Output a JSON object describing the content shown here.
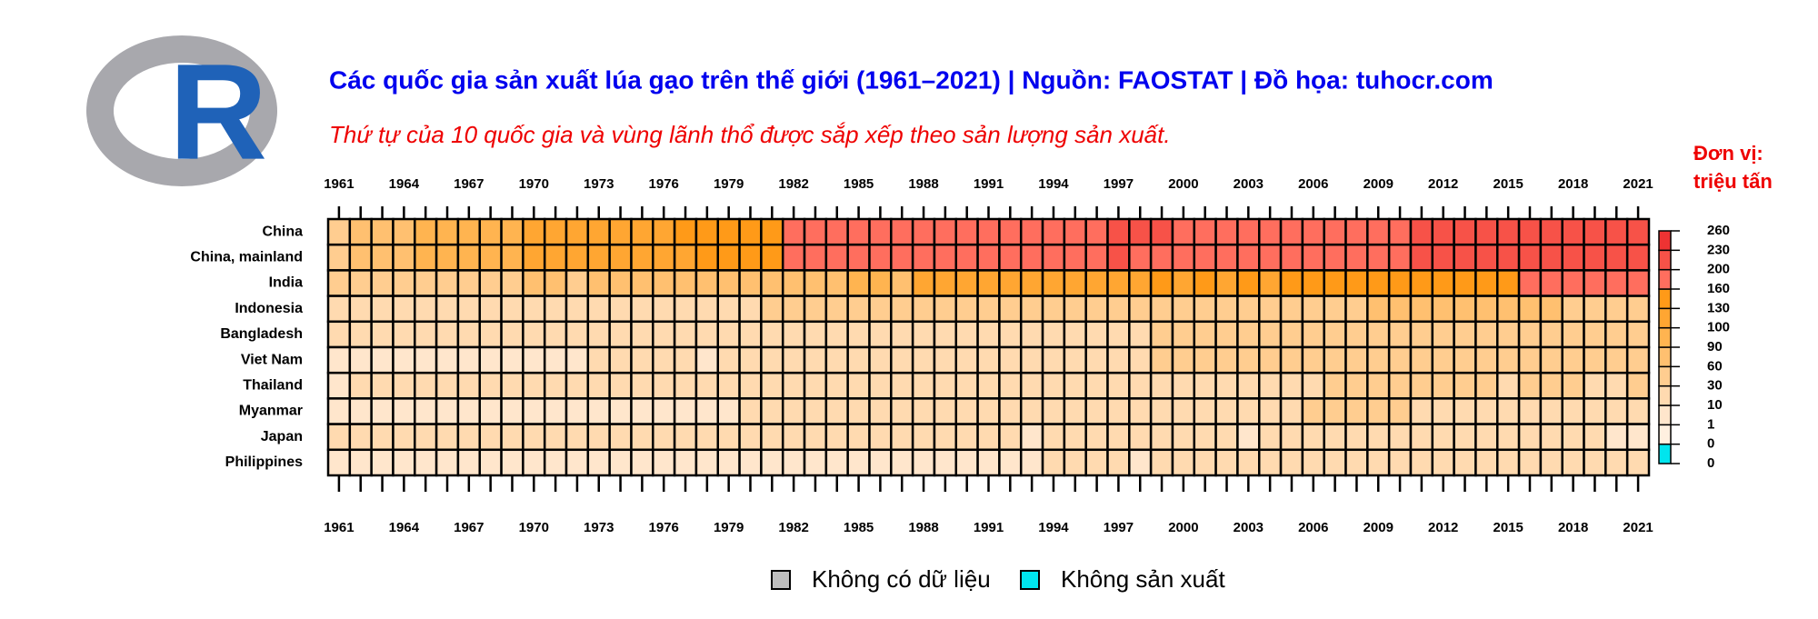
{
  "chart_data": {
    "type": "heatmap",
    "title": "Các quốc gia sản xuất lúa gạo trên thế giới (1961–2021) | Nguồn: FAOSTAT | Đồ họa: tuhocr.com",
    "subtitle": "Thứ tự của 10 quốc gia và vùng lãnh thổ được sắp xếp theo sản lượng sản xuất.",
    "unit_label": [
      "Đơn vị:",
      "triệu tấn"
    ],
    "x": [
      1961,
      1962,
      1963,
      1964,
      1965,
      1966,
      1967,
      1968,
      1969,
      1970,
      1971,
      1972,
      1973,
      1974,
      1975,
      1976,
      1977,
      1978,
      1979,
      1980,
      1981,
      1982,
      1983,
      1984,
      1985,
      1986,
      1987,
      1988,
      1989,
      1990,
      1991,
      1992,
      1993,
      1994,
      1995,
      1996,
      1997,
      1998,
      1999,
      2000,
      2001,
      2002,
      2003,
      2004,
      2005,
      2006,
      2007,
      2008,
      2009,
      2010,
      2011,
      2012,
      2013,
      2014,
      2015,
      2016,
      2017,
      2018,
      2019,
      2020,
      2021
    ],
    "xticks": [
      1961,
      1964,
      1967,
      1970,
      1973,
      1976,
      1979,
      1982,
      1985,
      1988,
      1991,
      1994,
      1997,
      2000,
      2003,
      2006,
      2009,
      2012,
      2015,
      2018,
      2021
    ],
    "series": [
      {
        "name": "China",
        "values": [
          56,
          65,
          76,
          89,
          93,
          98,
          97,
          97,
          97,
          113,
          118,
          115,
          124,
          127,
          128,
          128,
          131,
          139,
          146,
          145,
          146,
          164,
          171,
          181,
          172,
          175,
          177,
          172,
          184,
          192,
          186,
          188,
          180,
          178,
          187,
          197,
          203,
          202,
          201,
          190,
          180,
          177,
          163,
          181,
          183,
          184,
          188,
          194,
          197,
          197,
          203,
          206,
          205,
          208,
          214,
          213,
          214,
          214,
          211,
          213,
          214
        ]
      },
      {
        "name": "China, mainland",
        "values": [
          54,
          63,
          74,
          87,
          91,
          96,
          95,
          95,
          95,
          111,
          116,
          113,
          122,
          125,
          126,
          126,
          129,
          137,
          144,
          143,
          144,
          162,
          169,
          179,
          170,
          173,
          175,
          170,
          182,
          190,
          184,
          186,
          178,
          176,
          185,
          195,
          201,
          200,
          199,
          188,
          178,
          175,
          161,
          179,
          181,
          182,
          186,
          192,
          195,
          195,
          201,
          204,
          203,
          206,
          212,
          211,
          212,
          212,
          209,
          211,
          212
        ]
      },
      {
        "name": "India",
        "values": [
          53,
          50,
          55,
          58,
          46,
          46,
          56,
          60,
          60,
          63,
          64,
          59,
          66,
          61,
          74,
          63,
          79,
          81,
          64,
          80,
          80,
          71,
          90,
          88,
          96,
          91,
          85,
          106,
          110,
          112,
          111,
          109,
          120,
          123,
          115,
          122,
          124,
          129,
          134,
          127,
          140,
          107,
          133,
          125,
          138,
          140,
          145,
          149,
          134,
          144,
          158,
          157,
          159,
          157,
          156,
          164,
          169,
          175,
          178,
          186,
          195
        ]
      },
      {
        "name": "Indonesia",
        "values": [
          12,
          13,
          12,
          13,
          14,
          14,
          14,
          17,
          18,
          19,
          20,
          19,
          21,
          22,
          22,
          23,
          23,
          26,
          26,
          30,
          33,
          34,
          35,
          38,
          39,
          39,
          40,
          41,
          44,
          45,
          45,
          48,
          48,
          46,
          49,
          51,
          50,
          49,
          51,
          52,
          50,
          51,
          52,
          54,
          54,
          55,
          57,
          60,
          64,
          66,
          66,
          69,
          71,
          71,
          75,
          79,
          81,
          59,
          55,
          55,
          54
        ]
      },
      {
        "name": "Bangladesh",
        "values": [
          14,
          14,
          16,
          15,
          16,
          15,
          16,
          17,
          17,
          17,
          16,
          15,
          18,
          17,
          19,
          18,
          19,
          19,
          19,
          20,
          20,
          21,
          21,
          21,
          22,
          23,
          23,
          23,
          27,
          27,
          28,
          27,
          27,
          26,
          27,
          28,
          28,
          29,
          34,
          38,
          36,
          38,
          39,
          38,
          40,
          41,
          43,
          47,
          48,
          50,
          51,
          51,
          52,
          52,
          52,
          53,
          49,
          55,
          55,
          55,
          57
        ]
      },
      {
        "name": "Viet Nam",
        "values": [
          9,
          9,
          9,
          9,
          9,
          8,
          8,
          8,
          9,
          10,
          10,
          10,
          11,
          11,
          11,
          12,
          11,
          10,
          11,
          12,
          12,
          14,
          14,
          15,
          16,
          16,
          15,
          17,
          19,
          19,
          20,
          22,
          22,
          24,
          25,
          27,
          28,
          29,
          31,
          33,
          32,
          34,
          35,
          36,
          36,
          36,
          36,
          39,
          39,
          40,
          42,
          43,
          44,
          45,
          45,
          43,
          43,
          44,
          43,
          43,
          44
        ]
      },
      {
        "name": "Thailand",
        "values": [
          10,
          11,
          11,
          11,
          11,
          13,
          11,
          13,
          14,
          14,
          14,
          12,
          15,
          15,
          15,
          15,
          15,
          17,
          16,
          17,
          18,
          17,
          19,
          20,
          20,
          19,
          18,
          22,
          21,
          17,
          20,
          20,
          19,
          22,
          22,
          22,
          23,
          23,
          24,
          26,
          28,
          27,
          29,
          28,
          30,
          30,
          32,
          32,
          32,
          36,
          38,
          38,
          39,
          33,
          28,
          32,
          33,
          32,
          28,
          30,
          33
        ]
      },
      {
        "name": "Myanmar",
        "values": [
          7,
          8,
          8,
          8,
          8,
          7,
          8,
          8,
          8,
          8,
          8,
          8,
          9,
          9,
          9,
          9,
          9,
          10,
          10,
          13,
          14,
          14,
          14,
          14,
          14,
          14,
          13,
          13,
          14,
          14,
          13,
          14,
          16,
          18,
          18,
          18,
          17,
          17,
          20,
          21,
          22,
          22,
          23,
          25,
          28,
          31,
          31,
          31,
          32,
          32,
          29,
          26,
          26,
          26,
          26,
          26,
          26,
          26,
          26,
          25,
          25
        ]
      },
      {
        "name": "Japan",
        "values": [
          16,
          17,
          16,
          16,
          16,
          16,
          18,
          18,
          17,
          16,
          14,
          15,
          15,
          16,
          17,
          15,
          16,
          16,
          15,
          12,
          13,
          13,
          13,
          15,
          15,
          15,
          13,
          13,
          13,
          13,
          12,
          13,
          10,
          15,
          13,
          13,
          13,
          11,
          11,
          12,
          11,
          11,
          10,
          11,
          11,
          11,
          11,
          11,
          11,
          11,
          11,
          11,
          11,
          11,
          11,
          11,
          11,
          11,
          11,
          10,
          10
        ]
      },
      {
        "name": "Philippines",
        "values": [
          4,
          4,
          4,
          4,
          4,
          4,
          4,
          4,
          4,
          5,
          5,
          5,
          5,
          6,
          6,
          6,
          7,
          7,
          7,
          8,
          8,
          8,
          8,
          8,
          9,
          9,
          9,
          9,
          9,
          10,
          10,
          9,
          10,
          11,
          11,
          12,
          11,
          9,
          12,
          13,
          13,
          13,
          14,
          15,
          15,
          15,
          16,
          17,
          16,
          16,
          17,
          18,
          18,
          19,
          18,
          18,
          19,
          19,
          19,
          19,
          20
        ]
      }
    ],
    "legend_ticks": [
      0,
      0,
      1,
      10,
      30,
      60,
      90,
      100,
      130,
      160,
      200,
      230,
      260
    ],
    "legend_colors": [
      "#00e5ee",
      "#fff0e0",
      "#ffe6cc",
      "#ffdab0",
      "#ffcd90",
      "#ffc070",
      "#ffb450",
      "#ffa632",
      "#ff9a18",
      "#ff6e5e",
      "#f75248",
      "#ee3333"
    ],
    "na_color": "#bebebe",
    "na_label": "Không có dữ liệu",
    "zero_label": "Không sản xuất"
  }
}
